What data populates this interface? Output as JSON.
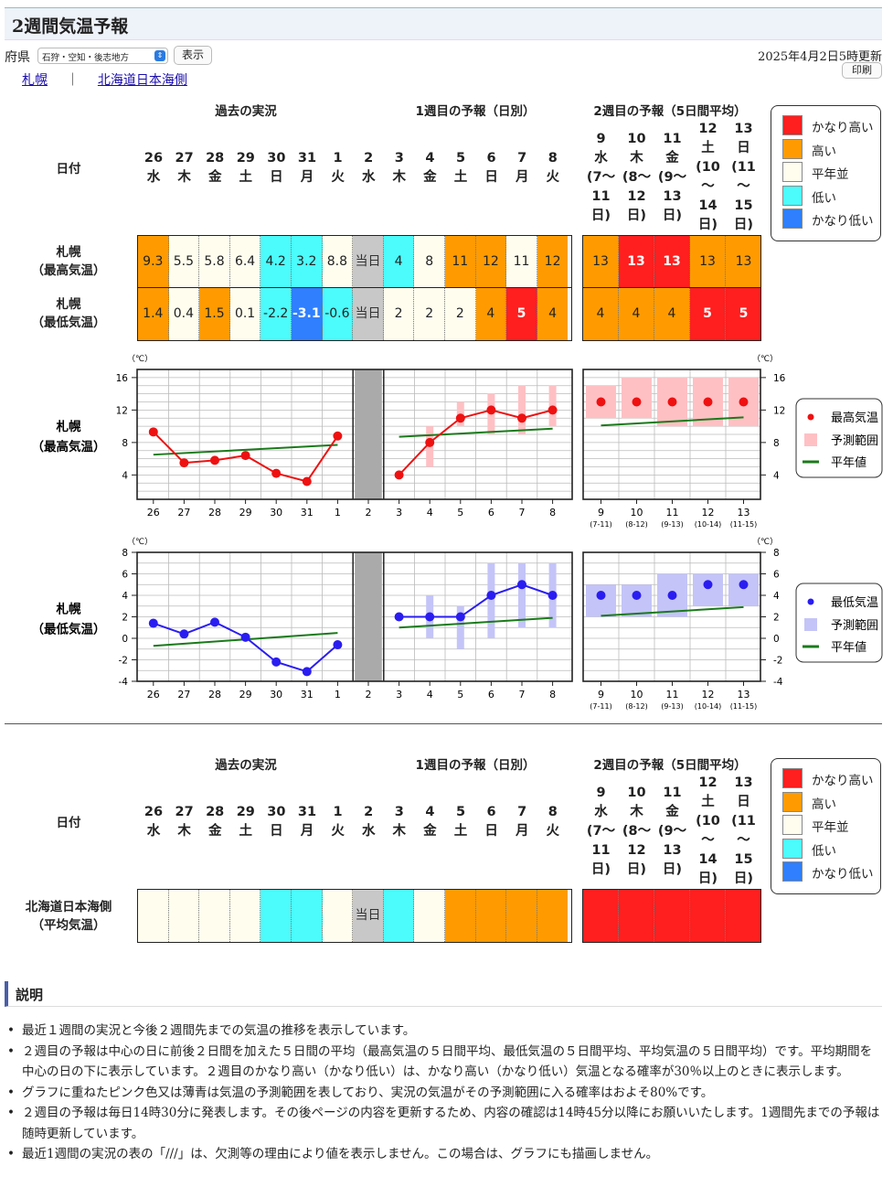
{
  "page": {
    "title": "2週間気温予報",
    "pref_label": "府県",
    "region_select": "石狩・空知・後志地方",
    "show_button": "表示",
    "updated": "2025年4月2日5時更新",
    "print_button": "印刷",
    "links": [
      "札幌",
      "北海道日本海側"
    ],
    "link_separator": "｜"
  },
  "headers": {
    "past": "過去の実況",
    "week1": "1週目の予報（日別）",
    "week2": "2週目の予報（5日間平均）",
    "date_label": "日付"
  },
  "dates": [
    {
      "d": "26",
      "w": "水"
    },
    {
      "d": "27",
      "w": "木"
    },
    {
      "d": "28",
      "w": "金"
    },
    {
      "d": "29",
      "w": "土"
    },
    {
      "d": "30",
      "w": "日"
    },
    {
      "d": "31",
      "w": "月"
    },
    {
      "d": "1",
      "w": "火"
    },
    {
      "d": "2",
      "w": "水"
    },
    {
      "d": "3",
      "w": "木"
    },
    {
      "d": "4",
      "w": "金"
    },
    {
      "d": "5",
      "w": "土"
    },
    {
      "d": "6",
      "w": "日"
    },
    {
      "d": "7",
      "w": "月"
    },
    {
      "d": "8",
      "w": "火"
    }
  ],
  "week2_dates": [
    {
      "lines": [
        "9",
        "水",
        "(7〜",
        "11",
        "日)"
      ]
    },
    {
      "lines": [
        "10",
        "木",
        "(8〜",
        "12",
        "日)"
      ]
    },
    {
      "lines": [
        "11",
        "金",
        "(9〜",
        "13",
        "日)"
      ]
    },
    {
      "lines": [
        "12",
        "土",
        "(10",
        "〜",
        "14",
        "日)"
      ]
    },
    {
      "lines": [
        "13",
        "日",
        "(11",
        "〜",
        "15",
        "日)"
      ]
    }
  ],
  "colors": {
    "very_high": "#ff1f1f",
    "high": "#ff9b00",
    "normal": "#fffdee",
    "low": "#4cfbfb",
    "very_low": "#2f7fff",
    "today": "#c8c8c8"
  },
  "legend": [
    "かなり高い",
    "高い",
    "平年並",
    "低い",
    "かなり低い"
  ],
  "sapporo": {
    "max_label": [
      "札幌",
      "（最高気温）"
    ],
    "min_label": [
      "札幌",
      "（最低気温）"
    ],
    "max_cells": [
      {
        "v": "9.3",
        "c": "high"
      },
      {
        "v": "5.5",
        "c": "normal"
      },
      {
        "v": "5.8",
        "c": "normal"
      },
      {
        "v": "6.4",
        "c": "normal"
      },
      {
        "v": "4.2",
        "c": "low"
      },
      {
        "v": "3.2",
        "c": "low"
      },
      {
        "v": "8.8",
        "c": "normal"
      },
      {
        "v": "当日",
        "c": "today"
      },
      {
        "v": "4",
        "c": "low"
      },
      {
        "v": "8",
        "c": "normal"
      },
      {
        "v": "11",
        "c": "high"
      },
      {
        "v": "12",
        "c": "high"
      },
      {
        "v": "11",
        "c": "normal"
      },
      {
        "v": "12",
        "c": "high"
      }
    ],
    "min_cells": [
      {
        "v": "1.4",
        "c": "high"
      },
      {
        "v": "0.4",
        "c": "normal"
      },
      {
        "v": "1.5",
        "c": "high"
      },
      {
        "v": "0.1",
        "c": "normal"
      },
      {
        "v": "-2.2",
        "c": "low"
      },
      {
        "v": "-3.1",
        "c": "very_low"
      },
      {
        "v": "-0.6",
        "c": "low"
      },
      {
        "v": "当日",
        "c": "today"
      },
      {
        "v": "2",
        "c": "normal"
      },
      {
        "v": "2",
        "c": "normal"
      },
      {
        "v": "2",
        "c": "normal"
      },
      {
        "v": "4",
        "c": "high"
      },
      {
        "v": "5",
        "c": "very_high"
      },
      {
        "v": "4",
        "c": "high"
      }
    ],
    "max_week2": [
      {
        "v": "13",
        "c": "high"
      },
      {
        "v": "13",
        "c": "very_high"
      },
      {
        "v": "13",
        "c": "very_high"
      },
      {
        "v": "13",
        "c": "high"
      },
      {
        "v": "13",
        "c": "high"
      }
    ],
    "min_week2": [
      {
        "v": "4",
        "c": "high"
      },
      {
        "v": "4",
        "c": "high"
      },
      {
        "v": "4",
        "c": "high"
      },
      {
        "v": "5",
        "c": "very_high"
      },
      {
        "v": "5",
        "c": "very_high"
      }
    ]
  },
  "nihonkai": {
    "label": [
      "北海道日本海側",
      "（平均気温）"
    ],
    "cells": [
      "normal",
      "normal",
      "normal",
      "normal",
      "low",
      "low",
      "normal",
      "today",
      "low",
      "normal",
      "high",
      "high",
      "high",
      "high"
    ],
    "today_text": "当日",
    "week2": [
      "very_high",
      "very_high",
      "very_high",
      "very_high",
      "very_high"
    ]
  },
  "chart_data": [
    {
      "type": "line",
      "title": "",
      "row_label": [
        "札幌",
        "（最高気温）"
      ],
      "unit": "（℃）",
      "ylim": [
        1,
        17
      ],
      "yticks": [
        4,
        8,
        12,
        16
      ],
      "x_daily": [
        "26",
        "27",
        "28",
        "29",
        "30",
        "31",
        "1",
        "2",
        "3",
        "4",
        "5",
        "6",
        "7",
        "8"
      ],
      "x_week2": [
        "9",
        "10",
        "11",
        "12",
        "13"
      ],
      "x_week2_sub": [
        "(7-11)",
        "(8-12)",
        "(9-13)",
        "(10-14)",
        "(11-15)"
      ],
      "observed": [
        9.3,
        5.5,
        5.8,
        6.4,
        4.2,
        3.2,
        8.8
      ],
      "forecast": [
        4,
        8,
        11,
        12,
        11,
        12
      ],
      "forecast_range": [
        [
          4,
          4
        ],
        [
          5,
          10
        ],
        [
          10,
          13
        ],
        [
          9,
          14
        ],
        [
          9,
          15
        ],
        [
          10,
          15
        ]
      ],
      "normal_daily": [
        6.5,
        6.7,
        6.9,
        7.1,
        7.3,
        7.5,
        7.7,
        7.9,
        8.7,
        8.9,
        9.1,
        9.3,
        9.5,
        9.7
      ],
      "week2_values": [
        13,
        13,
        13,
        13,
        13
      ],
      "week2_range": [
        [
          11,
          15
        ],
        [
          11,
          16
        ],
        [
          10,
          16
        ],
        [
          10,
          16
        ],
        [
          10,
          16
        ]
      ],
      "normal_week2": [
        10.1,
        10.4,
        10.6,
        10.9,
        11.1
      ],
      "legend": [
        "最高気温",
        "予測範囲",
        "平年値"
      ],
      "point_color": "#ee1111",
      "range_color": "#ffc0c4"
    },
    {
      "type": "line",
      "title": "",
      "row_label": [
        "札幌",
        "（最低気温）"
      ],
      "unit": "（℃）",
      "ylim": [
        -4,
        8
      ],
      "yticks": [
        -4,
        -2,
        0,
        2,
        4,
        6,
        8
      ],
      "x_daily": [
        "26",
        "27",
        "28",
        "29",
        "30",
        "31",
        "1",
        "2",
        "3",
        "4",
        "5",
        "6",
        "7",
        "8"
      ],
      "x_week2": [
        "9",
        "10",
        "11",
        "12",
        "13"
      ],
      "x_week2_sub": [
        "(7-11)",
        "(8-12)",
        "(9-13)",
        "(10-14)",
        "(11-15)"
      ],
      "observed": [
        1.4,
        0.4,
        1.5,
        0.1,
        -2.2,
        -3.1,
        -0.6
      ],
      "forecast": [
        2,
        2,
        2,
        4,
        5,
        4
      ],
      "forecast_range": [
        [
          2,
          2
        ],
        [
          0,
          4
        ],
        [
          -1,
          3
        ],
        [
          0,
          7
        ],
        [
          1,
          7
        ],
        [
          1,
          7
        ]
      ],
      "normal_daily": [
        -0.7,
        -0.5,
        -0.3,
        -0.1,
        0.1,
        0.3,
        0.5,
        0.7,
        1.0,
        1.2,
        1.4,
        1.6,
        1.8,
        1.9
      ],
      "week2_values": [
        4,
        4,
        4,
        5,
        5
      ],
      "week2_range": [
        [
          2,
          5
        ],
        [
          2,
          5
        ],
        [
          2,
          6
        ],
        [
          3,
          6
        ],
        [
          3,
          6
        ]
      ],
      "normal_week2": [
        2.1,
        2.3,
        2.5,
        2.7,
        2.9
      ],
      "legend": [
        "最低気温",
        "予測範囲",
        "平年値"
      ],
      "point_color": "#2a1df0",
      "range_color": "#c4c4f8"
    }
  ],
  "explanation": {
    "title": "説明",
    "items": [
      "最近１週間の実況と今後２週間先までの気温の推移を表示しています。",
      "２週目の予報は中心の日に前後２日間を加えた５日間の平均（最高気温の５日間平均、最低気温の５日間平均、平均気温の５日間平均）です。平均期間を中心の日の下に表示しています。２週目のかなり高い（かなり低い）は、かなり高い（かなり低い）気温となる確率が30％以上のときに表示します。",
      "グラフに重ねたピンク色又は薄青は気温の予測範囲を表しており、実況の気温がその予測範囲に入る確率はおよそ80%です。",
      "２週目の予報は毎日14時30分に発表します。その後ページの内容を更新するため、内容の確認は14時45分以降にお願いいたします。1週間先までの予報は随時更新しています。",
      "最近1週間の実況の表の「///」は、欠測等の理由により値を表示しません。この場合は、グラフにも描画しません。"
    ]
  }
}
